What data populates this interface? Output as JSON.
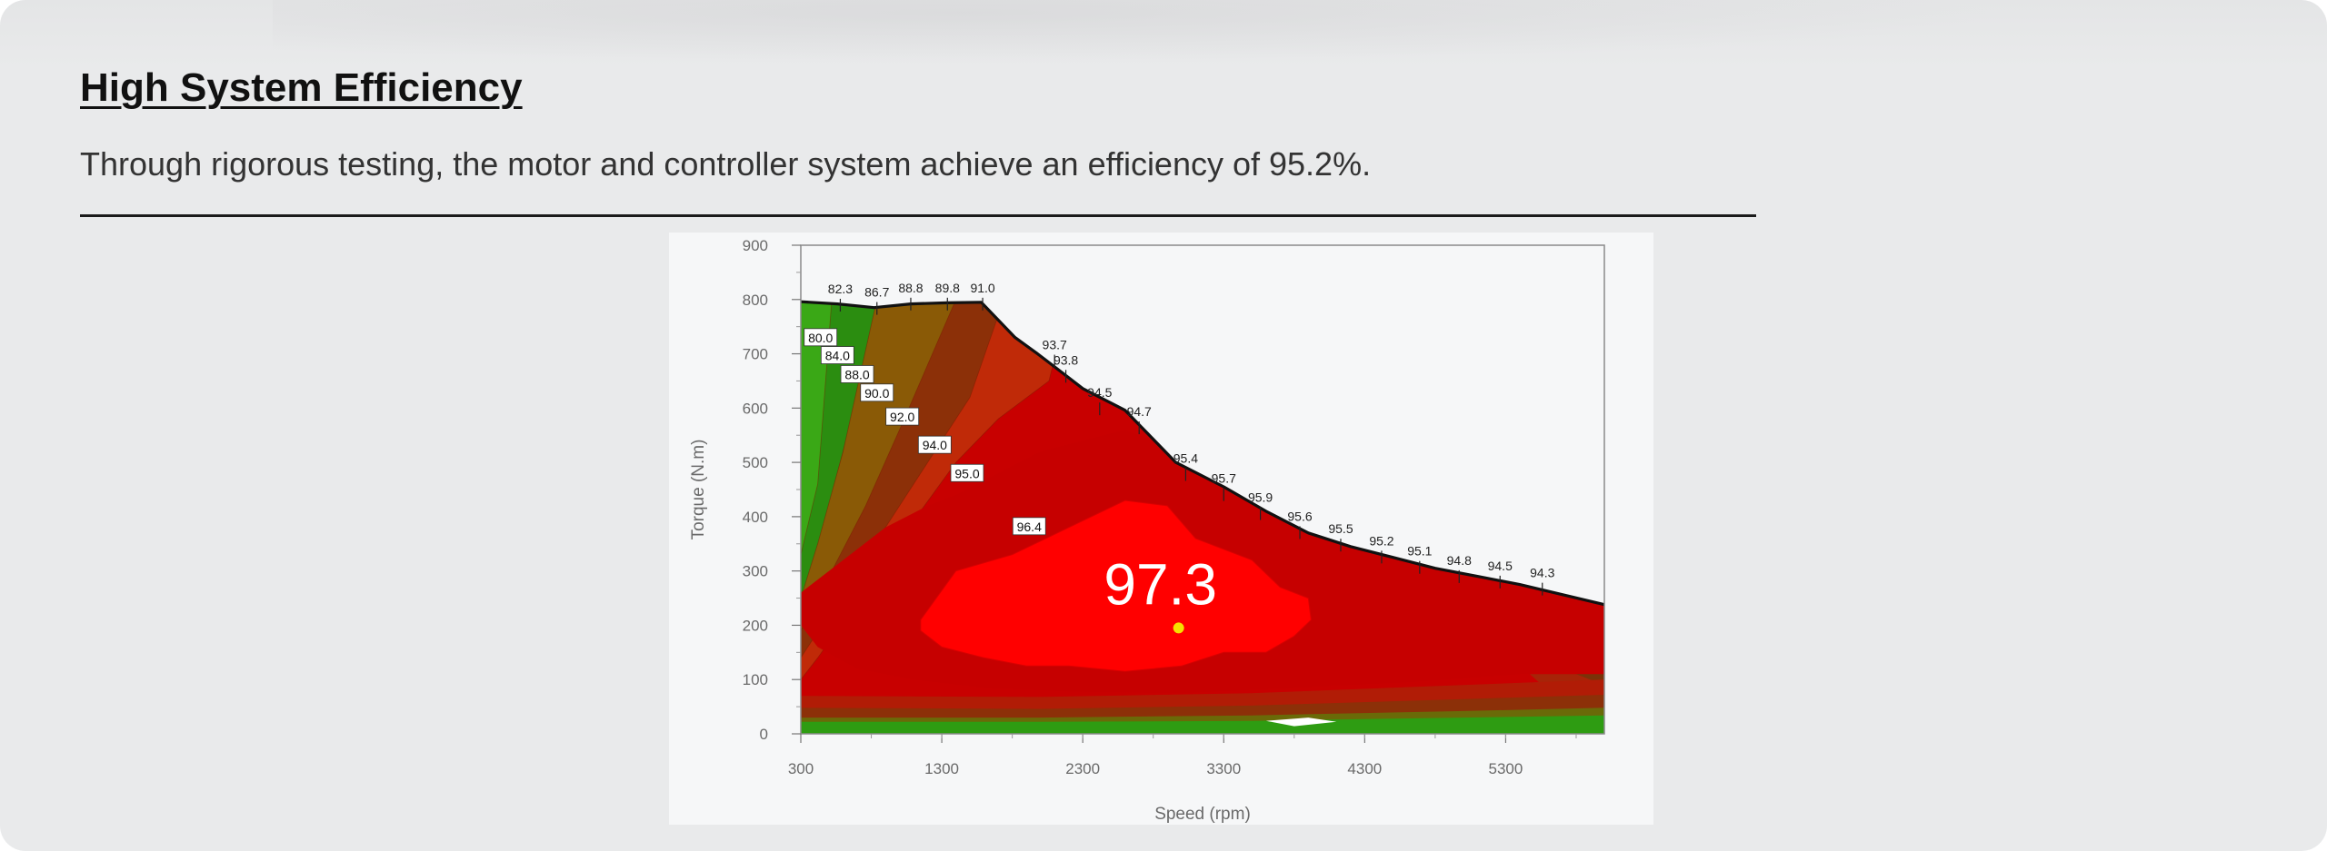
{
  "section": {
    "title": "High System Efficiency",
    "description": "Through rigorous testing, the motor and controller system achieve an efficiency of 95.2%."
  },
  "chart_data": {
    "type": "heatmap",
    "xlabel": "Speed (rpm)",
    "ylabel": "Torque  (N.m)",
    "x_ticks": [
      "300",
      "1300",
      "2300",
      "3300",
      "4300",
      "5300"
    ],
    "y_ticks": [
      "0",
      "100",
      "200",
      "300",
      "400",
      "500",
      "600",
      "700",
      "800",
      "900"
    ],
    "xlim": [
      300,
      6000
    ],
    "ylim": [
      0,
      900
    ],
    "grid": false,
    "boundary_efficiency_labels": [
      {
        "value": "82.3",
        "speed": 580,
        "torque": 808
      },
      {
        "value": "86.7",
        "speed": 840,
        "torque": 802
      },
      {
        "value": "88.8",
        "speed": 1080,
        "torque": 810
      },
      {
        "value": "89.8",
        "speed": 1340,
        "torque": 810
      },
      {
        "value": "91.0",
        "speed": 1590,
        "torque": 810
      },
      {
        "value": "93.7",
        "speed": 2100,
        "torque": 705
      },
      {
        "value": "93.8",
        "speed": 2180,
        "torque": 677
      },
      {
        "value": "94.5",
        "speed": 2420,
        "torque": 617
      },
      {
        "value": "94.7",
        "speed": 2700,
        "torque": 582
      },
      {
        "value": "95.4",
        "speed": 3030,
        "torque": 496
      },
      {
        "value": "95.7",
        "speed": 3300,
        "torque": 459
      },
      {
        "value": "95.9",
        "speed": 3560,
        "torque": 424
      },
      {
        "value": "95.6",
        "speed": 3840,
        "torque": 389
      },
      {
        "value": "95.5",
        "speed": 4130,
        "torque": 366
      },
      {
        "value": "95.2",
        "speed": 4420,
        "torque": 344
      },
      {
        "value": "95.1",
        "speed": 4690,
        "torque": 325
      },
      {
        "value": "94.8",
        "speed": 4970,
        "torque": 308
      },
      {
        "value": "94.5",
        "speed": 5260,
        "torque": 298
      },
      {
        "value": "94.3",
        "speed": 5560,
        "torque": 285
      }
    ],
    "contour_labels": [
      {
        "value": "80.0",
        "speed": 440,
        "torque": 728
      },
      {
        "value": "84.0",
        "speed": 560,
        "torque": 695
      },
      {
        "value": "88.0",
        "speed": 700,
        "torque": 660
      },
      {
        "value": "90.0",
        "speed": 840,
        "torque": 626
      },
      {
        "value": "92.0",
        "speed": 1020,
        "torque": 582
      },
      {
        "value": "94.0",
        "speed": 1250,
        "torque": 530
      },
      {
        "value": "95.0",
        "speed": 1480,
        "torque": 478
      },
      {
        "value": "96.4",
        "speed": 1920,
        "torque": 380
      }
    ],
    "peak_efficiency": {
      "value": "97.3",
      "speed": 2980,
      "torque": 195
    },
    "colors": {
      "green_low": "#2e9c12",
      "olive": "#8a5a06",
      "brown": "#8c3008",
      "orange_red": "#c02a08",
      "red": "#c80000",
      "peak_red": "#ff0000",
      "peak_marker": "#f5e000"
    }
  }
}
